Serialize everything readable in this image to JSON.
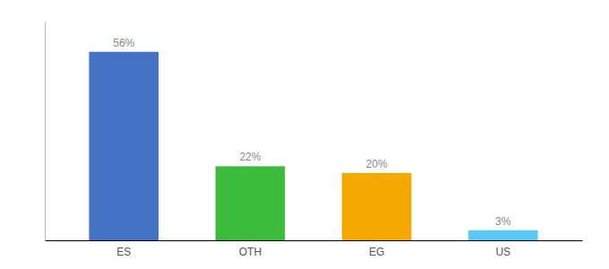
{
  "chart_data": {
    "type": "bar",
    "categories": [
      "ES",
      "OTH",
      "EG",
      "US"
    ],
    "values": [
      56,
      22,
      20,
      3
    ],
    "value_labels": [
      "56%",
      "22%",
      "20%",
      "3%"
    ],
    "colors": [
      "#4472c4",
      "#3dbb3d",
      "#f5a800",
      "#5bc8f5"
    ],
    "ylim": [
      0,
      65
    ],
    "data_labels": true,
    "tick_labels": "x"
  }
}
